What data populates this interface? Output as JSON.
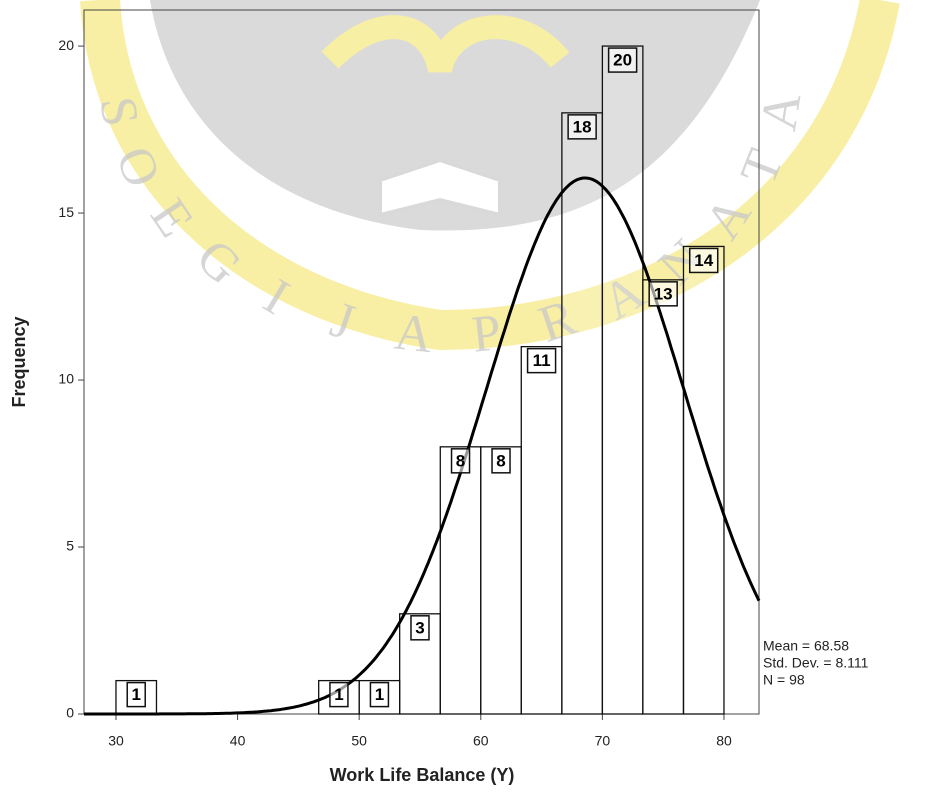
{
  "chart_data": {
    "type": "histogram",
    "x_label": "Work  Life Balance (Y)",
    "y_label": "Frequency",
    "bins": [
      30,
      33.33,
      36.67,
      40,
      43.33,
      46.67,
      50,
      53.33,
      56.67,
      60,
      63.33,
      66.67,
      70,
      73.33,
      76.67,
      80
    ],
    "values": [
      1,
      0,
      0,
      0,
      0,
      1,
      1,
      3,
      8,
      8,
      11,
      18,
      20,
      13,
      14
    ],
    "value_labels": [
      "1",
      null,
      null,
      null,
      null,
      "1",
      "1",
      "3",
      "8",
      "8",
      "11",
      "18",
      "20",
      "13",
      "14"
    ],
    "color": "#ffffff",
    "xlim": [
      27.37,
      82.88
    ],
    "ylim": [
      0,
      21.08
    ],
    "xticks": [
      30,
      40,
      50,
      60,
      70,
      80
    ],
    "yticks": [
      0,
      5,
      10,
      15,
      20
    ],
    "normal_curve": {
      "mean": 68.58,
      "std_dev": 8.111,
      "n": 98,
      "color": "#000000"
    },
    "annotations": [
      "Mean = 68.58",
      "Std. Dev. = 8.111",
      "N = 98"
    ],
    "watermark_letters": [
      "S",
      "O",
      "E",
      "G",
      "I",
      "J",
      "A",
      "P",
      "R",
      "A",
      "N",
      "A",
      "T",
      "A"
    ]
  }
}
